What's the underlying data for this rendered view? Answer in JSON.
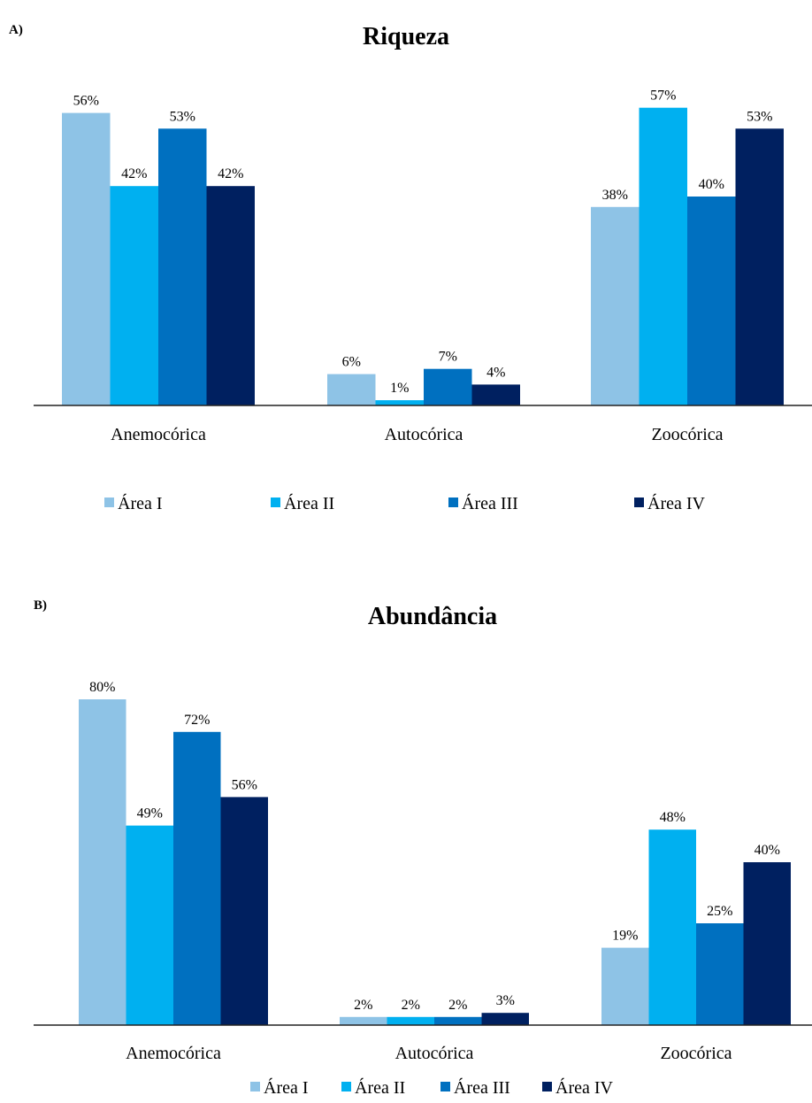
{
  "chart_data": [
    {
      "type": "bar",
      "panel": "A)",
      "title": "Riqueza",
      "categories": [
        "Anemocórica",
        "Autocórica",
        "Zoocórica"
      ],
      "ylim": [
        0,
        60
      ],
      "grid": false,
      "legend_position": "bottom",
      "series": [
        {
          "name": "Área I",
          "color": "#8ec3e6",
          "values": [
            56,
            6,
            38
          ],
          "labels": [
            "56%",
            "6%",
            "38%"
          ]
        },
        {
          "name": "Área II",
          "color": "#00b0f0",
          "values": [
            42,
            1,
            57
          ],
          "labels": [
            "42%",
            "1%",
            "57%"
          ]
        },
        {
          "name": "Área III",
          "color": "#0070c0",
          "values": [
            53,
            7,
            40
          ],
          "labels": [
            "53%",
            "7%",
            "40%"
          ]
        },
        {
          "name": "Área IV",
          "color": "#002060",
          "values": [
            42,
            4,
            53
          ],
          "labels": [
            "42%",
            "4%",
            "53%"
          ]
        }
      ]
    },
    {
      "type": "bar",
      "panel": "B)",
      "title": "Abundância",
      "categories": [
        "Anemocórica",
        "Autocórica",
        "Zoocórica"
      ],
      "ylim": [
        0,
        85
      ],
      "grid": false,
      "legend_position": "bottom",
      "series": [
        {
          "name": "Área I",
          "color": "#8ec3e6",
          "values": [
            80,
            2,
            19
          ],
          "labels": [
            "80%",
            "2%",
            "19%"
          ]
        },
        {
          "name": "Área II",
          "color": "#00b0f0",
          "values": [
            49,
            2,
            48
          ],
          "labels": [
            "49%",
            "2%",
            "48%"
          ]
        },
        {
          "name": "Área III",
          "color": "#0070c0",
          "values": [
            72,
            2,
            25
          ],
          "labels": [
            "72%",
            "2%",
            "25%"
          ]
        },
        {
          "name": "Área IV",
          "color": "#002060",
          "values": [
            56,
            3,
            40
          ],
          "labels": [
            "56%",
            "3%",
            "40%"
          ]
        }
      ]
    }
  ]
}
